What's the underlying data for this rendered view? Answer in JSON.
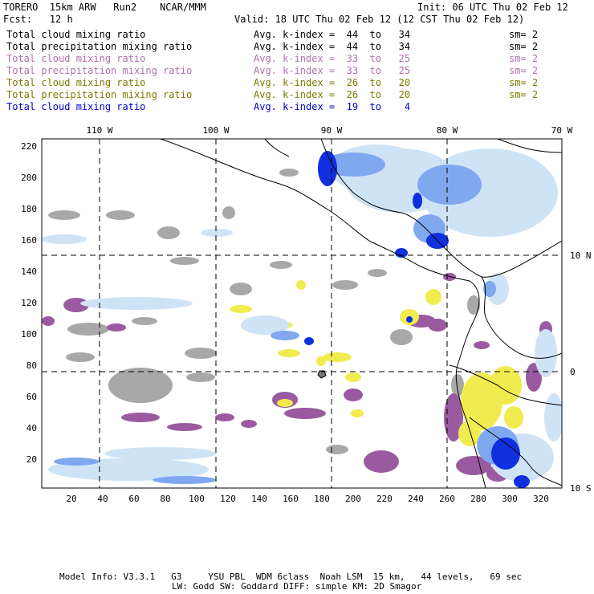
{
  "header": {
    "model": "TORERO  15km ARW   Run2    NCAR/MMM",
    "init": "Init: 06 UTC Thu 02 Feb 12",
    "fcst": "Fcst:   12 h",
    "valid": "Valid: 18 UTC Thu 02 Feb 12 (12 CST Thu 02 Feb 12)"
  },
  "legend": [
    {
      "field": "Total cloud mixing ratio",
      "kindex": "Avg. k-index =  44  to   34",
      "sm": "sm= 2",
      "color": "#000000"
    },
    {
      "field": "Total precipitation mixing ratio",
      "kindex": "Avg. k-index =  44  to   34",
      "sm": "sm= 2",
      "color": "#000000"
    },
    {
      "field": "Total cloud mixing ratio",
      "kindex": "Avg. k-index =  33  to   25",
      "sm": "sm= 2",
      "color": "#b070b0"
    },
    {
      "field": "Total precipitation mixing ratio",
      "kindex": "Avg. k-index =  33  to   25",
      "sm": "sm= 2",
      "color": "#b070b0"
    },
    {
      "field": "Total cloud mixing ratio",
      "kindex": "Avg. k-index =  26  to   20",
      "sm": "sm= 2",
      "color": "#7a7a00"
    },
    {
      "field": "Total precipitation mixing ratio",
      "kindex": "Avg. k-index =  26  to   20",
      "sm": "sm= 2",
      "color": "#7a7a00"
    },
    {
      "field": "Total cloud mixing ratio",
      "kindex": "Avg. k-index =  19  to    4",
      "sm": "",
      "color": "#0000cc"
    }
  ],
  "map": {
    "lon_labels": [
      "110 W",
      "100 W",
      "90 W",
      "80 W",
      "70 W"
    ],
    "lat_labels": [
      "10 N",
      "0",
      "10 S"
    ],
    "y_ticks": [
      "220",
      "200",
      "180",
      "160",
      "140",
      "120",
      "100",
      "80",
      "60",
      "40",
      "20"
    ],
    "x_ticks": [
      "20",
      "40",
      "60",
      "80",
      "100",
      "120",
      "140",
      "160",
      "180",
      "200",
      "220",
      "240",
      "260",
      "280",
      "300",
      "320"
    ]
  },
  "footer": {
    "line1": "Model Info: V3.3.1   G3     YSU PBL  WDM 6class  Noah LSM  15 km,   44 levels,   69 sec",
    "line2": "LW: Godd SW: Goddard DIFF: simple KM: 2D Smagor"
  }
}
